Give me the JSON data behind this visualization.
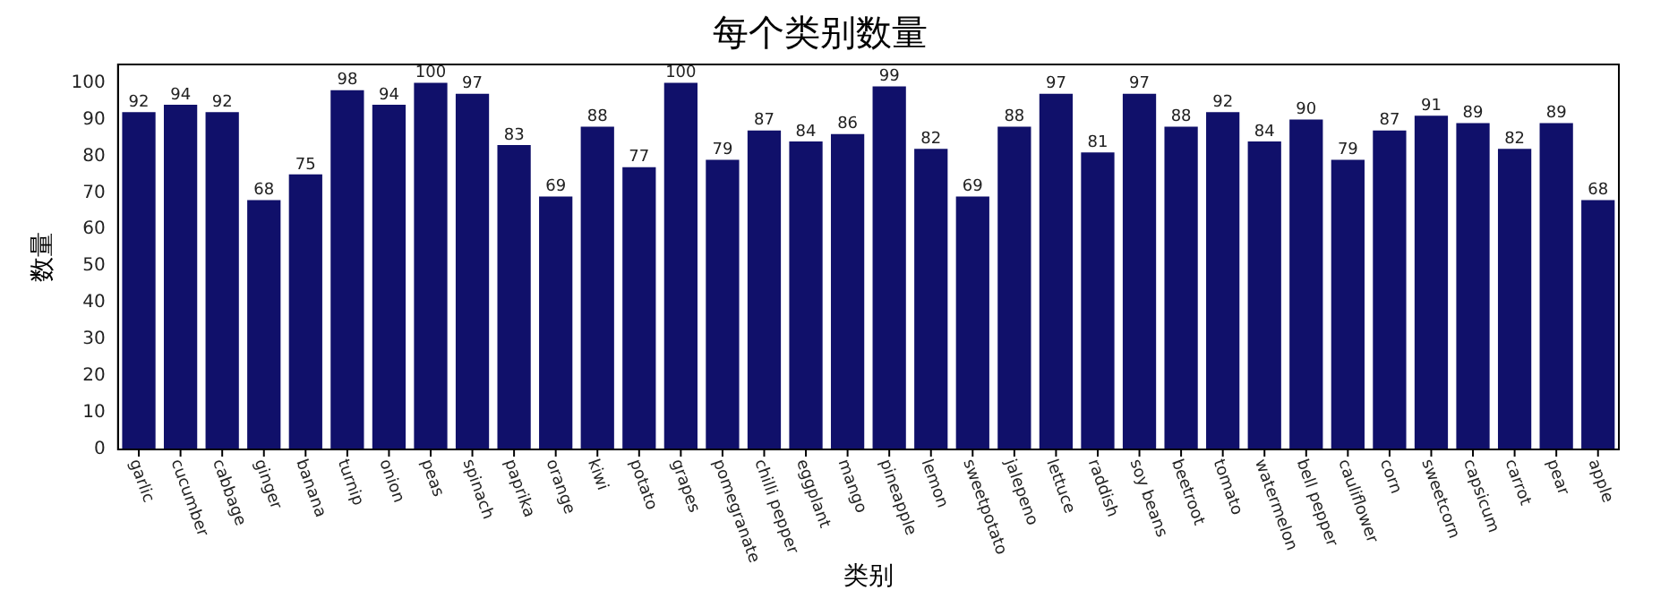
{
  "chart_data": {
    "type": "bar",
    "title": "每个类别数量",
    "xlabel": "类别",
    "ylabel": "数量",
    "categories": [
      "garlic",
      "cucumber",
      "cabbage",
      "ginger",
      "banana",
      "turnip",
      "onion",
      "peas",
      "spinach",
      "paprika",
      "orange",
      "kiwi",
      "potato",
      "grapes",
      "pomegranate",
      "chilli pepper",
      "eggplant",
      "mango",
      "pineapple",
      "lemon",
      "sweetpotato",
      "jalepeno",
      "lettuce",
      "raddish",
      "soy beans",
      "beetroot",
      "tomato",
      "watermelon",
      "bell pepper",
      "cauliflower",
      "corn",
      "sweetcorn",
      "capsicum",
      "carrot",
      "pear",
      "apple"
    ],
    "values": [
      92,
      94,
      92,
      68,
      75,
      98,
      94,
      100,
      97,
      83,
      69,
      88,
      77,
      100,
      79,
      87,
      84,
      86,
      99,
      82,
      69,
      88,
      97,
      81,
      97,
      88,
      92,
      84,
      90,
      79,
      87,
      91,
      89,
      82,
      89,
      68
    ],
    "color": "#10106a",
    "ylim": [
      0,
      105
    ],
    "yticks": [
      0,
      10,
      20,
      30,
      40,
      50,
      60,
      70,
      80,
      90,
      100
    ],
    "grid": false,
    "data_labels": true
  }
}
